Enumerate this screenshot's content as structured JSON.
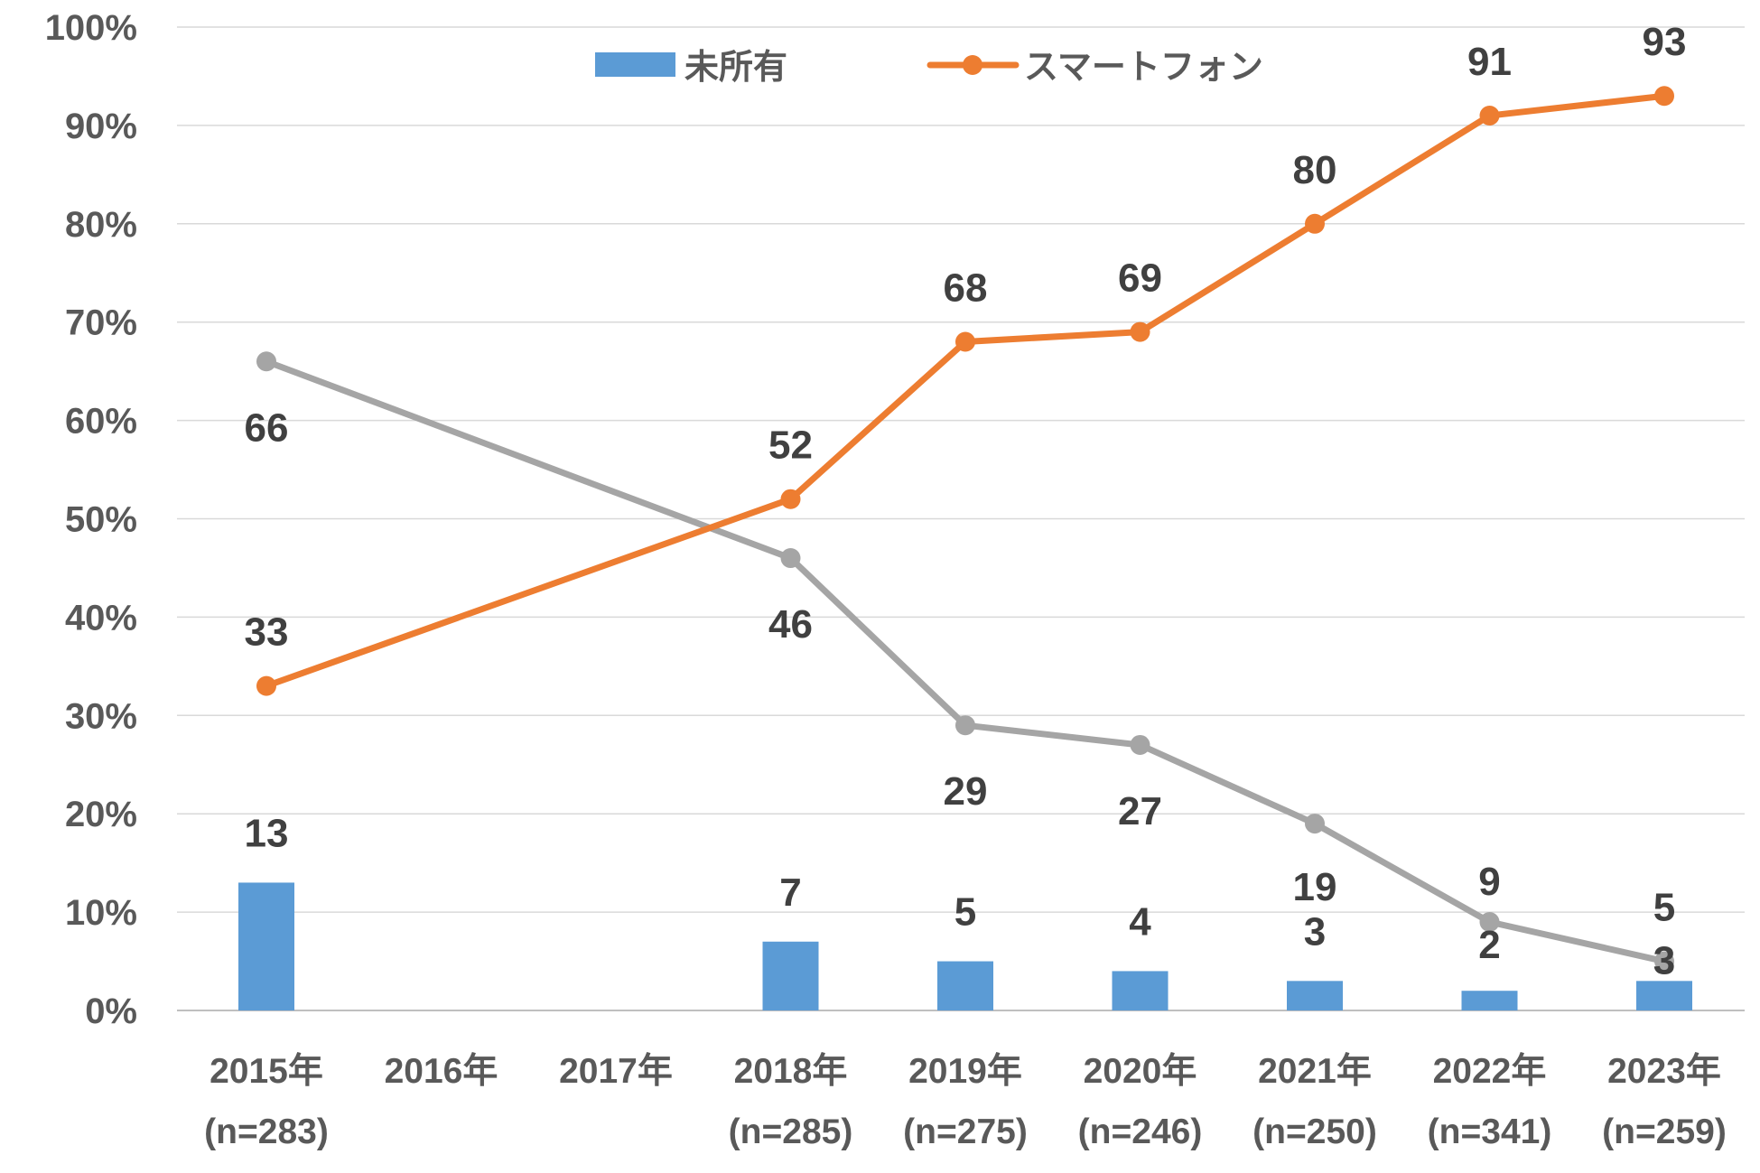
{
  "chart_data": {
    "type": "bar",
    "categories": [
      "2015年",
      "2016年",
      "2017年",
      "2018年",
      "2019年",
      "2020年",
      "2021年",
      "2022年",
      "2023年"
    ],
    "category_sub_labels": [
      "(n=283)",
      "",
      "",
      "(n=285)",
      "(n=275)",
      "(n=246)",
      "(n=250)",
      "(n=341)",
      "(n=259)"
    ],
    "y_ticks": [
      "0%",
      "10%",
      "20%",
      "30%",
      "40%",
      "50%",
      "60%",
      "70%",
      "80%",
      "90%",
      "100%"
    ],
    "ylim": [
      0,
      100
    ],
    "grid": true,
    "legend_position": "top",
    "series": [
      {
        "name": "未所有",
        "type": "bar",
        "color": "#5B9BD5",
        "values": [
          13,
          null,
          null,
          7,
          5,
          4,
          3,
          2,
          3
        ],
        "in_legend": true
      },
      {
        "name": "",
        "type": "line",
        "color": "#A5A5A5",
        "values": [
          66,
          null,
          null,
          46,
          29,
          27,
          19,
          9,
          5
        ],
        "in_legend": false
      },
      {
        "name": "スマートフォン",
        "type": "line",
        "color": "#ED7D31",
        "values": [
          33,
          null,
          null,
          52,
          68,
          69,
          80,
          91,
          93
        ],
        "in_legend": true
      }
    ]
  }
}
